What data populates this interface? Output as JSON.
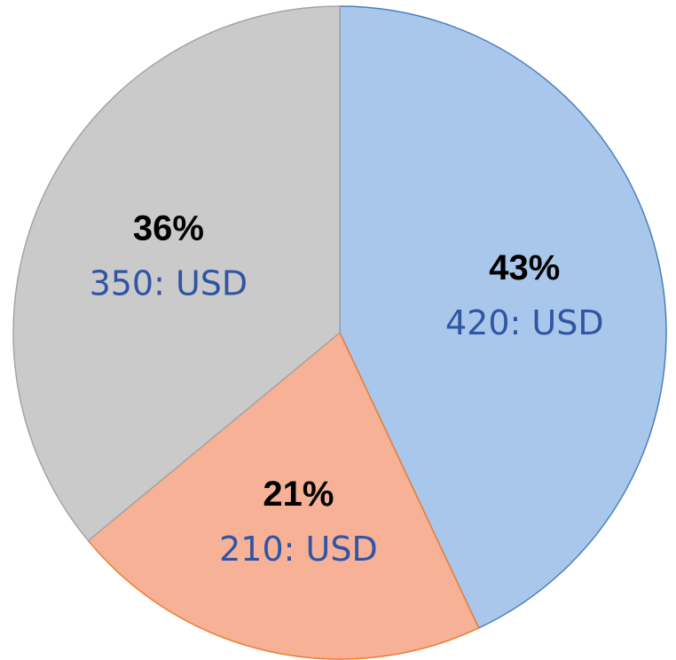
{
  "chart_data": {
    "type": "pie",
    "values": [
      43,
      21,
      36
    ],
    "value_labels": [
      "43%",
      "21%",
      "36%"
    ],
    "labels": [
      "420: USD",
      "210: USD",
      "350: USD"
    ],
    "colors": [
      "#a9c7ea",
      "#f6b196",
      "#cacaca"
    ],
    "edge_colors": [
      "#4a7fc1",
      "#ed7d31",
      "#a5a5a5"
    ]
  }
}
